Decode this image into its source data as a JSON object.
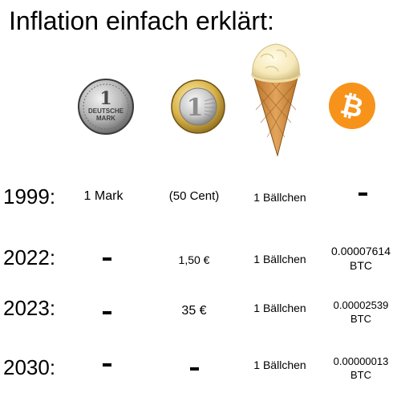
{
  "title": "Inflation einfach erklärt:",
  "colors": {
    "bitcoin_orange": "#F7931A",
    "text": "#000000",
    "background": "#FFFFFF"
  },
  "icons": [
    {
      "name": "deutsche-mark-coin-icon",
      "engraving": [
        "1",
        "DEUTSCHE",
        "MARK"
      ]
    },
    {
      "name": "euro-coin-icon",
      "engraving": "1"
    },
    {
      "name": "ice-cream-cone-icon"
    },
    {
      "name": "bitcoin-logo-icon",
      "glyph": "₿"
    }
  ],
  "rows": [
    {
      "year": "1999:",
      "mark": "1 Mark",
      "euro": "(50 Cent)",
      "ice": "1 Bällchen",
      "btc_value": "",
      "btc_unit": ""
    },
    {
      "year": "2022:",
      "mark": "",
      "euro": "1,50 €",
      "ice": "1 Bällchen",
      "btc_value": "0.00007614",
      "btc_unit": "BTC"
    },
    {
      "year": "2023:",
      "mark": "",
      "euro": "35 €",
      "ice": "1 Bällchen",
      "btc_value": "0.00002539",
      "btc_unit": "BTC"
    },
    {
      "year": "2030:",
      "mark": "",
      "euro": "",
      "ice": "1 Bällchen",
      "btc_value": "0.00000013",
      "btc_unit": "BTC"
    }
  ]
}
